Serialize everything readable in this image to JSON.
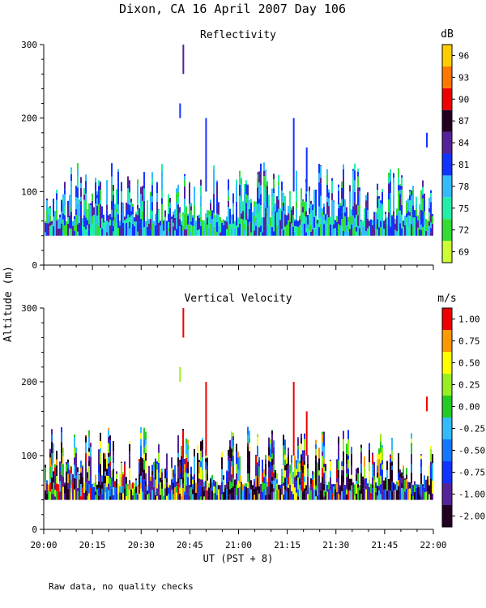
{
  "title": "Dixon, CA 16 April 2007  Day 106",
  "y_axis_label": "Altitude (m)",
  "x_axis_label": "UT  (PST + 8)",
  "footnote": "Raw data, no quality checks",
  "chart_data": [
    {
      "type": "heatmap",
      "title": "Reflectivity",
      "variable": "reflectivity",
      "colorbar_unit": "dB",
      "colorbar_ticks": [
        "69",
        "72",
        "75",
        "78",
        "81",
        "84",
        "87",
        "90",
        "93",
        "96"
      ],
      "colorbar_colors": [
        "#ccff33",
        "#33dd33",
        "#22eeaa",
        "#33bbff",
        "#1133ff",
        "#552299",
        "#220022",
        "#ee0000",
        "#ff7700",
        "#ffcc00"
      ],
      "x_range_ut": [
        "20:00",
        "22:00"
      ],
      "x_tick_labels": [
        "20:00",
        "20:15",
        "20:30",
        "20:45",
        "21:00",
        "21:15",
        "21:30",
        "21:45",
        "22:00"
      ],
      "ylim": [
        0,
        300
      ],
      "y_tick_labels": [
        "0",
        "100",
        "200",
        "300"
      ],
      "echo_base_m": 40,
      "typical_echo_top_m": [
        60,
        140
      ],
      "features": [
        {
          "time": "20:43",
          "bottom_m": 260,
          "top_m": 300
        },
        {
          "time": "20:42",
          "bottom_m": 200,
          "top_m": 220
        },
        {
          "time": "20:50",
          "bottom_m": 100,
          "top_m": 200
        },
        {
          "time": "21:17",
          "bottom_m": 100,
          "top_m": 200
        },
        {
          "time": "21:21",
          "bottom_m": 100,
          "top_m": 160
        },
        {
          "time": "21:58",
          "bottom_m": 160,
          "top_m": 180
        }
      ]
    },
    {
      "type": "heatmap",
      "title": "Vertical Velocity",
      "variable": "vertical_velocity",
      "colorbar_unit": "m/s",
      "colorbar_ticks": [
        "-2.00",
        "-1.00",
        "-0.75",
        "-0.50",
        "-0.25",
        "0.00",
        "0.25",
        "0.50",
        "0.75",
        "1.00"
      ],
      "colorbar_colors": [
        "#220022",
        "#552299",
        "#1133ff",
        "#1177ff",
        "#33bbff",
        "#22cc22",
        "#99ee22",
        "#ffff00",
        "#ff9900",
        "#ee0000"
      ],
      "x_range_ut": [
        "20:00",
        "22:00"
      ],
      "x_tick_labels": [
        "20:00",
        "20:15",
        "20:30",
        "20:45",
        "21:00",
        "21:15",
        "21:30",
        "21:45",
        "22:00"
      ],
      "ylim": [
        0,
        300
      ],
      "y_tick_labels": [
        "0",
        "100",
        "200",
        "300"
      ],
      "echo_base_m": 40,
      "typical_echo_top_m": [
        60,
        140
      ],
      "features": [
        {
          "time": "20:43",
          "bottom_m": 260,
          "top_m": 300
        },
        {
          "time": "20:42",
          "bottom_m": 200,
          "top_m": 220
        },
        {
          "time": "20:50",
          "bottom_m": 100,
          "top_m": 200
        },
        {
          "time": "21:17",
          "bottom_m": 100,
          "top_m": 200
        },
        {
          "time": "21:21",
          "bottom_m": 100,
          "top_m": 160
        },
        {
          "time": "21:58",
          "bottom_m": 160,
          "top_m": 180
        }
      ]
    }
  ]
}
